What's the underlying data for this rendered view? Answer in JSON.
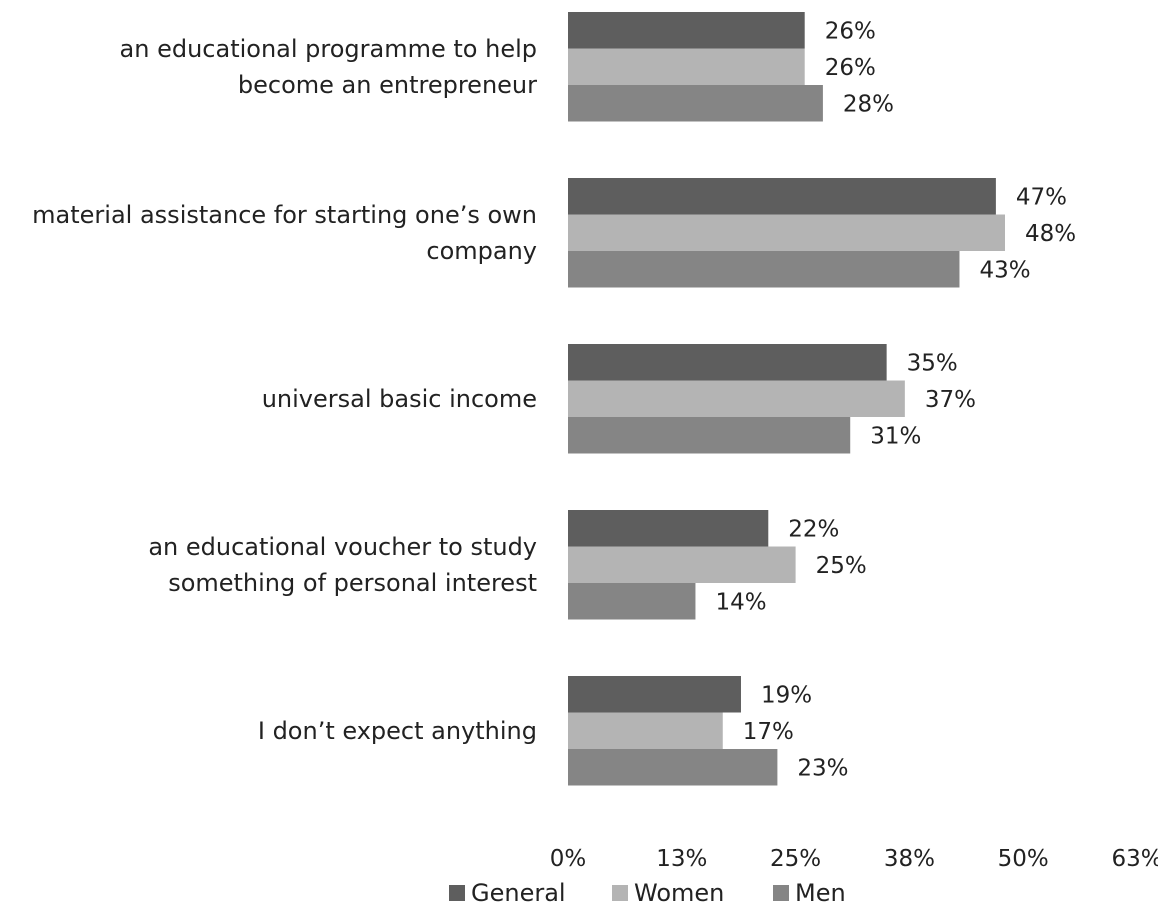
{
  "chart_data": {
    "type": "bar",
    "orientation": "horizontal",
    "categories": [
      [
        "an educational programme to help",
        "become an entrepreneur"
      ],
      [
        "material assistance for starting one’s own",
        "company"
      ],
      [
        "universal basic income"
      ],
      [
        "an educational voucher to study",
        "something of personal interest"
      ],
      [
        "I don’t expect anything"
      ]
    ],
    "series": [
      {
        "name": "General",
        "color": "#5e5e5e",
        "values": [
          26,
          47,
          35,
          22,
          19
        ],
        "labels": [
          "26%",
          "47%",
          "35%",
          "22%",
          "19%"
        ]
      },
      {
        "name": "Women",
        "color": "#b4b4b4",
        "values": [
          26,
          48,
          37,
          25,
          17
        ],
        "labels": [
          "26%",
          "48%",
          "37%",
          "25%",
          "17%"
        ]
      },
      {
        "name": "Men",
        "color": "#858585",
        "values": [
          28,
          43,
          31,
          14,
          23
        ],
        "labels": [
          "28%",
          "43%",
          "31%",
          "14%",
          "23%"
        ]
      }
    ],
    "xaxis": {
      "ticks": [
        0,
        12.5,
        25,
        37.5,
        50,
        62.5
      ],
      "tick_labels": [
        "0%",
        "13%",
        "25%",
        "38%",
        "50%",
        "63%"
      ],
      "range": [
        0,
        62.5
      ]
    },
    "grid": false,
    "legend_position": "bottom"
  }
}
